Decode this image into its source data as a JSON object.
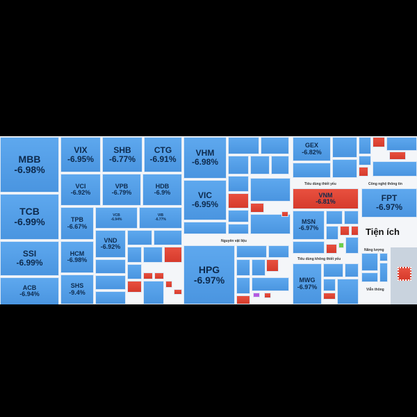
{
  "sectors": {
    "materials": "Nguyên vật liệu",
    "staples": "Tiêu dùng thiết yếu",
    "it": "Công nghệ thông tin",
    "utilities": "Tiện ích",
    "discretionary": "Tiêu dùng không thiết yếu",
    "energy": "Năng lượng",
    "telecom": "Viễn thông"
  },
  "tiles": {
    "MBB": {
      "ticker": "MBB",
      "change": "-6.98%"
    },
    "TCB": {
      "ticker": "TCB",
      "change": "-6.99%"
    },
    "SSI": {
      "ticker": "SSI",
      "change": "-6.99%"
    },
    "ACB": {
      "ticker": "ACB",
      "change": "-6.94%"
    },
    "VIX": {
      "ticker": "VIX",
      "change": "-6.95%"
    },
    "SHB": {
      "ticker": "SHB",
      "change": "-6.77%"
    },
    "CTG": {
      "ticker": "CTG",
      "change": "-6.91%"
    },
    "VCI": {
      "ticker": "VCI",
      "change": "-6.92%"
    },
    "VPB": {
      "ticker": "VPB",
      "change": "-6.79%"
    },
    "HDB": {
      "ticker": "HDB",
      "change": "-6.9%"
    },
    "TPB": {
      "ticker": "TPB",
      "change": "-6.67%"
    },
    "VCB": {
      "ticker": "VCB",
      "change": "-6.94%"
    },
    "VIB": {
      "ticker": "VIB",
      "change": "-6.77%"
    },
    "HCM": {
      "ticker": "HCM",
      "change": "-6.98%"
    },
    "VND": {
      "ticker": "VND",
      "change": "-6.92%"
    },
    "SHS": {
      "ticker": "SHS",
      "change": "-9.4%"
    },
    "VHM": {
      "ticker": "VHM",
      "change": "-6.98%"
    },
    "VIC": {
      "ticker": "VIC",
      "change": "-6.95%"
    },
    "HPG": {
      "ticker": "HPG",
      "change": "-6.97%"
    },
    "GEX": {
      "ticker": "GEX",
      "change": "-6.82%"
    },
    "VNM": {
      "ticker": "VNM",
      "change": "-6.81%"
    },
    "FPT": {
      "ticker": "FPT",
      "change": "-6.97%"
    },
    "MSN": {
      "ticker": "MSN",
      "change": "-6.97%"
    },
    "MWG": {
      "ticker": "MWG",
      "change": "-6.97%"
    }
  }
}
